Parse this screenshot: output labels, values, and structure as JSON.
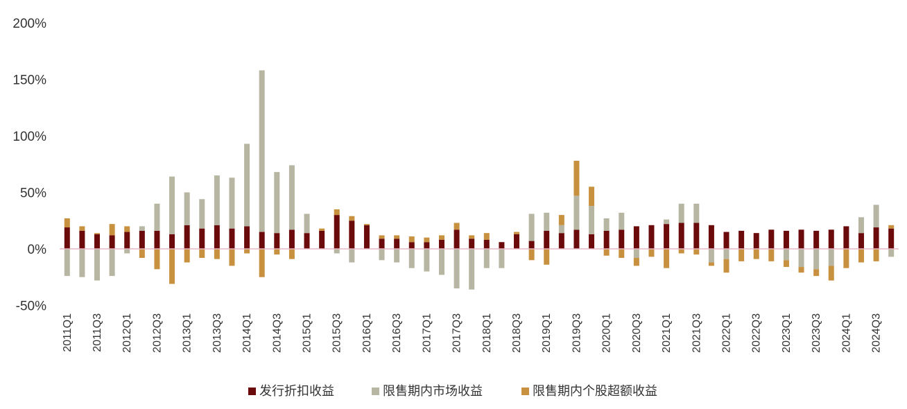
{
  "chart_data": {
    "type": "bar",
    "stacked": true,
    "title": "",
    "xlabel": "",
    "ylabel": "",
    "ylim": [
      -50,
      200
    ],
    "yticks": [
      -50,
      0,
      50,
      100,
      150,
      200
    ],
    "ytick_labels": [
      "-50%",
      "0%",
      "50%",
      "100%",
      "150%",
      "200%"
    ],
    "grid": false,
    "legend_position": "bottom",
    "colors": {
      "series1": "#6b0a0a",
      "series2": "#b7b6a3",
      "series3": "#c8913f",
      "zero_line": "#e6b8c6",
      "axis": "#999999"
    },
    "categories": [
      "2011Q1",
      "2011Q2",
      "2011Q3",
      "2011Q4",
      "2012Q1",
      "2012Q2",
      "2012Q3",
      "2012Q4",
      "2013Q1",
      "2013Q2",
      "2013Q3",
      "2013Q4",
      "2014Q1",
      "2014Q2",
      "2014Q3",
      "2014Q4",
      "2015Q1",
      "2015Q2",
      "2015Q3",
      "2015Q4",
      "2016Q1",
      "2016Q2",
      "2016Q3",
      "2016Q4",
      "2017Q1",
      "2017Q2",
      "2017Q3",
      "2017Q4",
      "2018Q1",
      "2018Q2",
      "2018Q3",
      "2018Q4",
      "2019Q1",
      "2019Q2",
      "2019Q3",
      "2019Q4",
      "2020Q1",
      "2020Q2",
      "2020Q3",
      "2020Q4",
      "2021Q1",
      "2021Q2",
      "2021Q3",
      "2021Q4",
      "2022Q1",
      "2022Q2",
      "2022Q3",
      "2022Q4",
      "2023Q1",
      "2023Q2",
      "2023Q3",
      "2023Q4",
      "2024Q1",
      "2024Q2",
      "2024Q3",
      "2024Q4"
    ],
    "x_tick_labels": [
      "2011Q1",
      "2011Q3",
      "2012Q1",
      "2012Q3",
      "2013Q1",
      "2013Q3",
      "2014Q1",
      "2014Q3",
      "2015Q1",
      "2015Q3",
      "2016Q1",
      "2016Q3",
      "2017Q1",
      "2017Q3",
      "2018Q1",
      "2018Q3",
      "2019Q1",
      "2019Q3",
      "2020Q1",
      "2020Q3",
      "2021Q1",
      "2021Q3",
      "2022Q1",
      "2022Q3",
      "2023Q1",
      "2023Q3",
      "2024Q1",
      "2024Q3"
    ],
    "series": [
      {
        "name": "发行折扣收益",
        "values": [
          19,
          16,
          13,
          12,
          15,
          16,
          16,
          13,
          21,
          18,
          21,
          18,
          20,
          15,
          14,
          17,
          14,
          16,
          30,
          25,
          21,
          9,
          9,
          6,
          6,
          8,
          17,
          9,
          8,
          6,
          13,
          7,
          16,
          14,
          17,
          13,
          16,
          17,
          20,
          21,
          22,
          23,
          23,
          21,
          15,
          16,
          14,
          17,
          16,
          17,
          16,
          17,
          20,
          14,
          19,
          18
        ]
      },
      {
        "name": "限售期内市场收益",
        "values": [
          -24,
          -25,
          -28,
          -24,
          -4,
          4,
          24,
          51,
          29,
          26,
          44,
          45,
          73,
          143,
          54,
          57,
          17,
          0,
          -4,
          -12,
          0,
          -10,
          -12,
          -17,
          -20,
          -23,
          -35,
          -36,
          -17,
          -17,
          0,
          24,
          16,
          7,
          30,
          25,
          11,
          15,
          -8,
          0,
          4,
          17,
          17,
          -12,
          -9,
          0,
          0,
          0,
          -10,
          -16,
          -18,
          -15,
          0,
          14,
          20,
          -7
        ]
      },
      {
        "name": "限售期内个股超额收益",
        "values": [
          8,
          4,
          1,
          10,
          5,
          -8,
          -18,
          -31,
          -12,
          -8,
          -9,
          -15,
          -4,
          -25,
          -5,
          -9,
          0,
          2,
          5,
          4,
          1,
          3,
          3,
          5,
          4,
          4,
          6,
          3,
          6,
          0,
          2,
          -10,
          -14,
          9,
          31,
          17,
          -6,
          -8,
          -7,
          -7,
          -17,
          -4,
          -5,
          -3,
          -12,
          -11,
          -9,
          -11,
          -6,
          -5,
          -6,
          -13,
          -17,
          -12,
          -11,
          3
        ]
      }
    ]
  }
}
